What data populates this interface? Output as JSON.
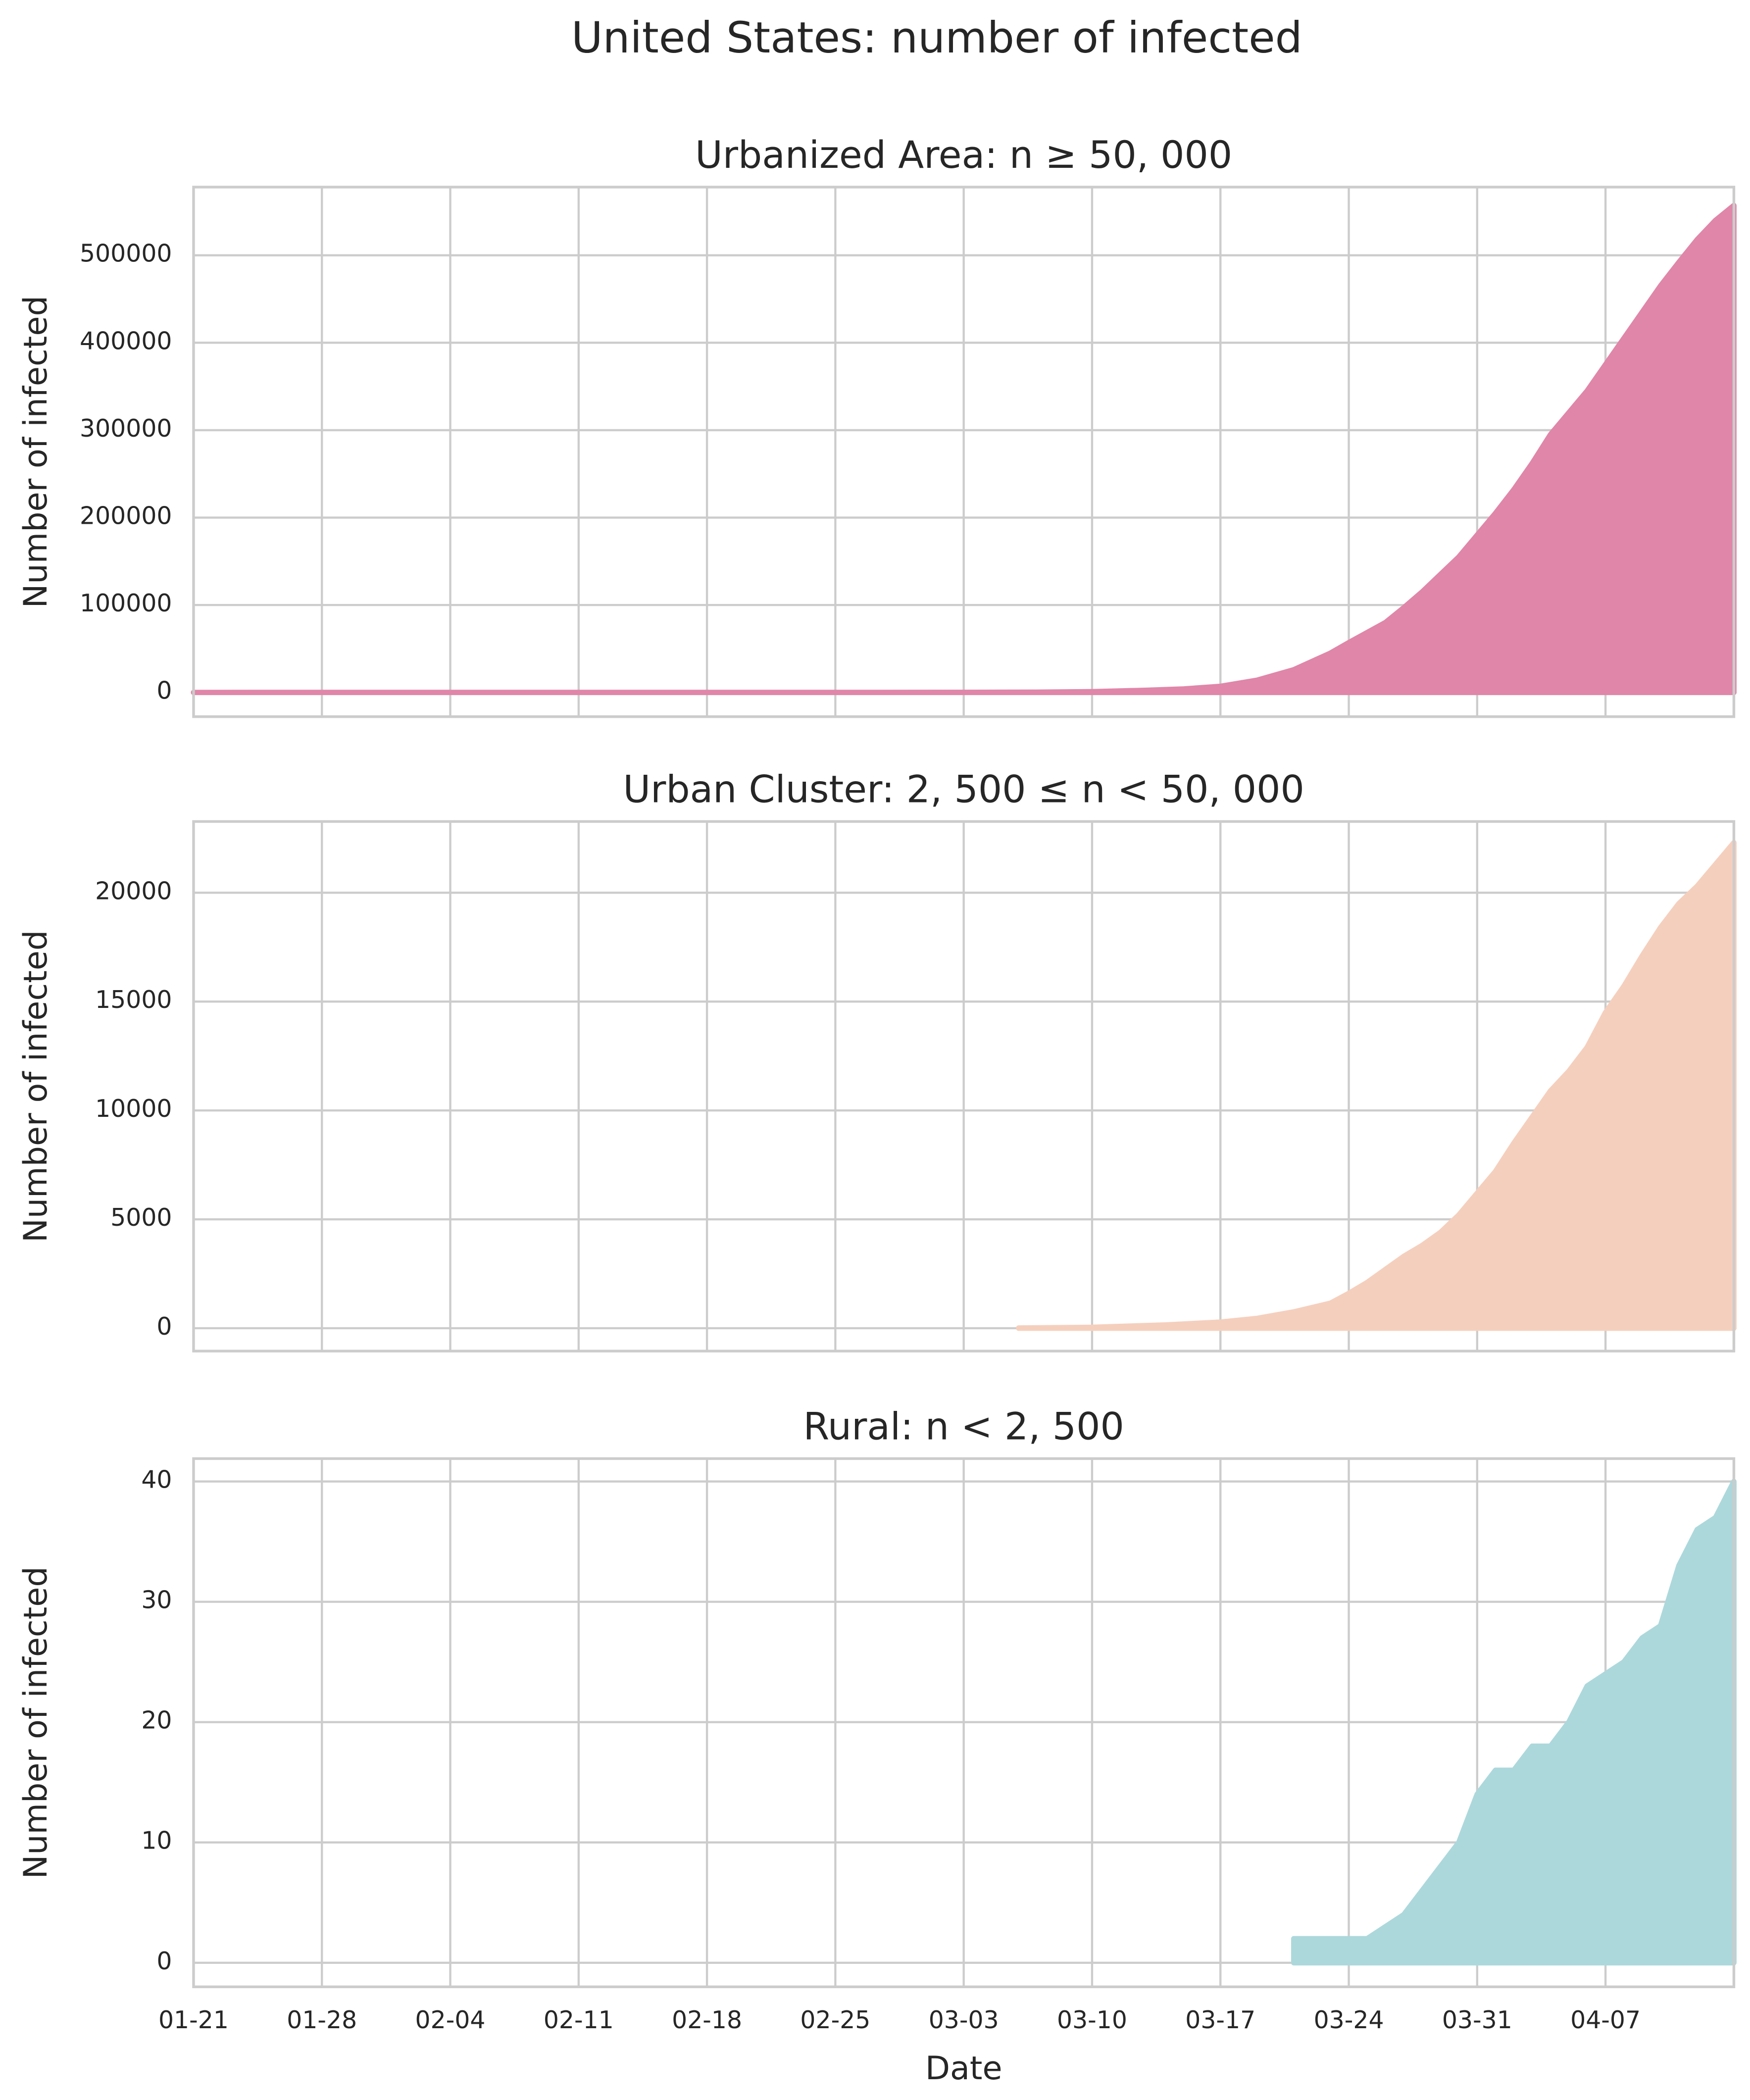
{
  "title": "United States: number of infected",
  "chart_data": [
    {
      "type": "area",
      "title": "Urbanized Area: n ≥ 50, 000",
      "ylabel": "Number of infected",
      "color": "#e086a8",
      "grid": true,
      "xlim": [
        "01-21",
        "04-14"
      ],
      "xticks": [
        "01-21",
        "01-28",
        "02-04",
        "02-11",
        "02-18",
        "02-25",
        "03-03",
        "03-10",
        "03-17",
        "03-24",
        "03-31",
        "04-07"
      ],
      "ylim": [
        -27700,
        578000
      ],
      "yticks": [
        0,
        100000,
        200000,
        300000,
        400000,
        500000
      ],
      "x": [
        "01-21",
        "02-04",
        "02-18",
        "02-25",
        "03-03",
        "03-07",
        "03-10",
        "03-13",
        "03-15",
        "03-17",
        "03-19",
        "03-21",
        "03-23",
        "03-24",
        "03-26",
        "03-27",
        "03-28",
        "03-29",
        "03-30",
        "03-31",
        "04-01",
        "04-02",
        "04-03",
        "04-04",
        "04-05",
        "04-06",
        "04-07",
        "04-08",
        "04-09",
        "04-10",
        "04-11",
        "04-12",
        "04-13",
        "04-14"
      ],
      "values": [
        1,
        11,
        15,
        50,
        100,
        300,
        900,
        2500,
        4000,
        7000,
        14000,
        26000,
        45000,
        57000,
        80000,
        97000,
        115000,
        135000,
        155000,
        180000,
        205000,
        232000,
        262000,
        295000,
        320000,
        345000,
        375000,
        405000,
        435000,
        465000,
        492000,
        518000,
        540000,
        557000
      ]
    },
    {
      "type": "area",
      "title": "Urban Cluster: 2, 500 ≤ n < 50, 000",
      "ylabel": "Number of infected",
      "color": "#f5cfbd",
      "grid": true,
      "xlim": [
        "01-21",
        "04-14"
      ],
      "xticks": [
        "01-21",
        "01-28",
        "02-04",
        "02-11",
        "02-18",
        "02-25",
        "03-03",
        "03-10",
        "03-17",
        "03-24",
        "03-31",
        "04-07"
      ],
      "ylim": [
        -1050,
        23270
      ],
      "yticks": [
        0,
        5000,
        10000,
        15000,
        20000
      ],
      "x": [
        "03-06",
        "03-10",
        "03-14",
        "03-17",
        "03-19",
        "03-21",
        "03-23",
        "03-24",
        "03-25",
        "03-26",
        "03-27",
        "03-28",
        "03-29",
        "03-30",
        "03-31",
        "04-01",
        "04-02",
        "04-03",
        "04-04",
        "04-05",
        "04-06",
        "04-07",
        "04-08",
        "04-09",
        "04-10",
        "04-11",
        "04-12",
        "04-13",
        "04-14"
      ],
      "values": [
        10,
        40,
        150,
        280,
        450,
        750,
        1150,
        1600,
        2100,
        2700,
        3300,
        3800,
        4400,
        5200,
        6200,
        7200,
        8500,
        9700,
        10900,
        11800,
        12900,
        14500,
        15700,
        17100,
        18400,
        19500,
        20300,
        21300,
        22300
      ]
    },
    {
      "type": "area",
      "title": "Rural: n < 2, 500",
      "ylabel": "Number of infected",
      "xlabel": "Date",
      "color": "#acd8dc",
      "grid": true,
      "xlim": [
        "01-21",
        "04-14"
      ],
      "xticks": [
        "01-21",
        "01-28",
        "02-04",
        "02-11",
        "02-18",
        "02-25",
        "03-03",
        "03-10",
        "03-17",
        "03-24",
        "03-31",
        "04-07"
      ],
      "ylim": [
        -2,
        41.9
      ],
      "yticks": [
        0,
        10,
        20,
        30,
        40
      ],
      "x": [
        "03-21",
        "03-22",
        "03-25",
        "03-27",
        "03-28",
        "03-29",
        "03-30",
        "03-31",
        "04-01",
        "04-02",
        "04-03",
        "04-04",
        "04-05",
        "04-06",
        "04-07",
        "04-08",
        "04-09",
        "04-10",
        "04-11",
        "04-12",
        "04-13",
        "04-14"
      ],
      "values": [
        2,
        2,
        2,
        4,
        6,
        8,
        10,
        14,
        16,
        16,
        18,
        18,
        20,
        23,
        24,
        25,
        27,
        28,
        33,
        36,
        37,
        40
      ]
    }
  ]
}
